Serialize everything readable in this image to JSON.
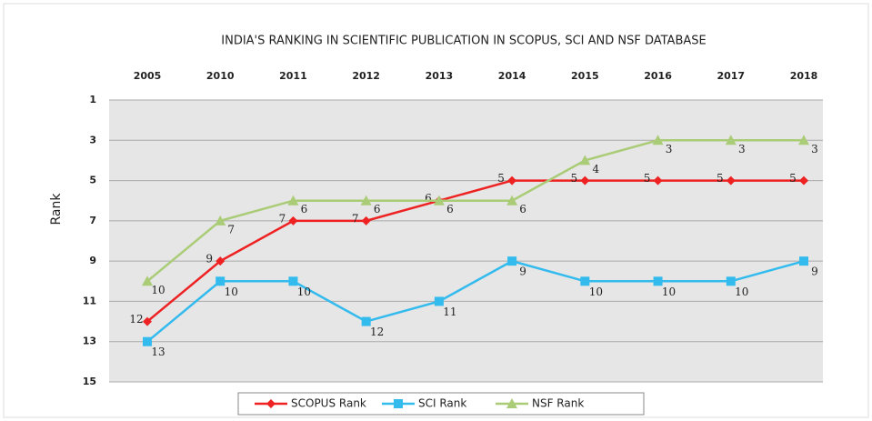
{
  "chart_data": {
    "type": "line",
    "title": "INDIA'S RANKING IN SCIENTIFIC PUBLICATION IN SCOPUS, SCI AND NSF DATABASE",
    "y_label": "Rank",
    "categories": [
      "2005",
      "2010",
      "2011",
      "2012",
      "2013",
      "2014",
      "2015",
      "2016",
      "2017",
      "2018"
    ],
    "series": [
      {
        "name": "SCOPUS Rank",
        "color": "#ee2222",
        "marker": "diamond",
        "values": [
          12,
          9,
          7,
          7,
          6,
          5,
          5,
          5,
          5,
          5
        ]
      },
      {
        "name": "SCI Rank",
        "color": "#33bbee",
        "marker": "square",
        "values": [
          13,
          10,
          10,
          12,
          11,
          9,
          10,
          10,
          10,
          9
        ]
      },
      {
        "name": "NSF Rank",
        "color": "#aacc77",
        "marker": "triangle",
        "values": [
          10,
          7,
          6,
          6,
          6,
          6,
          4,
          3,
          3,
          3
        ]
      }
    ],
    "ylim": [
      1,
      15
    ],
    "yticks": [
      1,
      3,
      5,
      7,
      9,
      11,
      13,
      15
    ],
    "y_inverted": true,
    "grid": true,
    "legend": "bottom"
  }
}
